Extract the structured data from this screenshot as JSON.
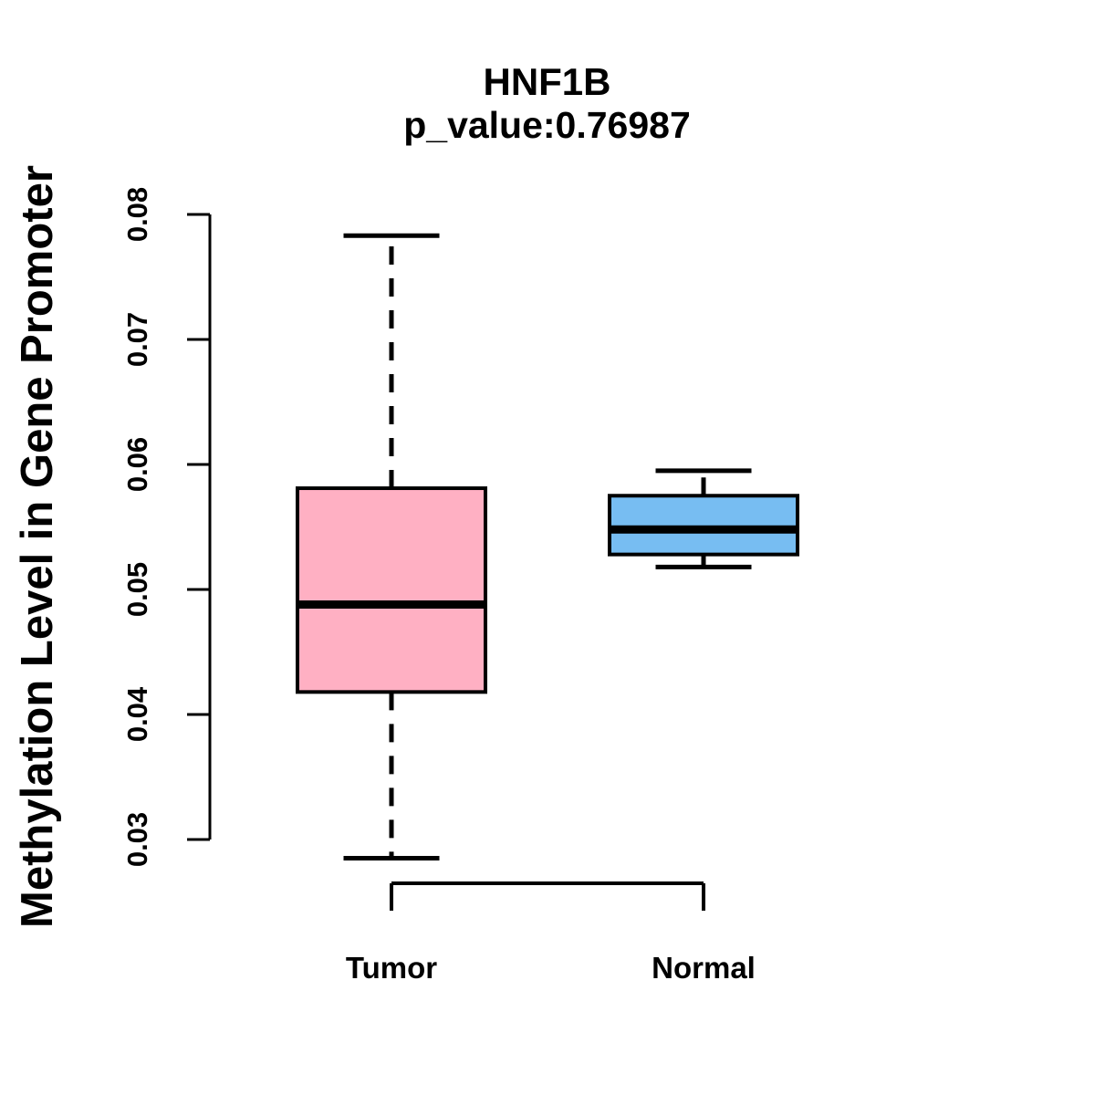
{
  "figure": {
    "background": "#FFFFFF",
    "text_color": "#000000"
  },
  "chart_data": {
    "type": "boxplot",
    "title": "HNF1B",
    "subtitle": "p_value:0.76987",
    "p_value": 0.76987,
    "ylabel": "Methylation Level in Gene Promoter",
    "xlabel": "",
    "categories": [
      "Tumor",
      "Normal"
    ],
    "ytick_labels": [
      "0.03",
      "0.04",
      "0.05",
      "0.06",
      "0.07",
      "0.08"
    ],
    "ylim": [
      0.0275,
      0.0805
    ],
    "grid": false,
    "legend": "none",
    "axis_color": "#000000",
    "series": [
      {
        "name": "Tumor",
        "fill_color": "#FFB0C3",
        "border_color": "#000000",
        "whisker_style": "dashed",
        "stats": {
          "lower_whisker": 0.0285,
          "q1": 0.0418,
          "median": 0.0488,
          "q3": 0.0581,
          "upper_whisker": 0.0783
        }
      },
      {
        "name": "Normal",
        "fill_color": "#77BDF2",
        "border_color": "#000000",
        "whisker_style": "dashed",
        "stats": {
          "lower_whisker": 0.0518,
          "q1": 0.0528,
          "median": 0.0548,
          "q3": 0.0575,
          "upper_whisker": 0.0595
        }
      }
    ]
  }
}
